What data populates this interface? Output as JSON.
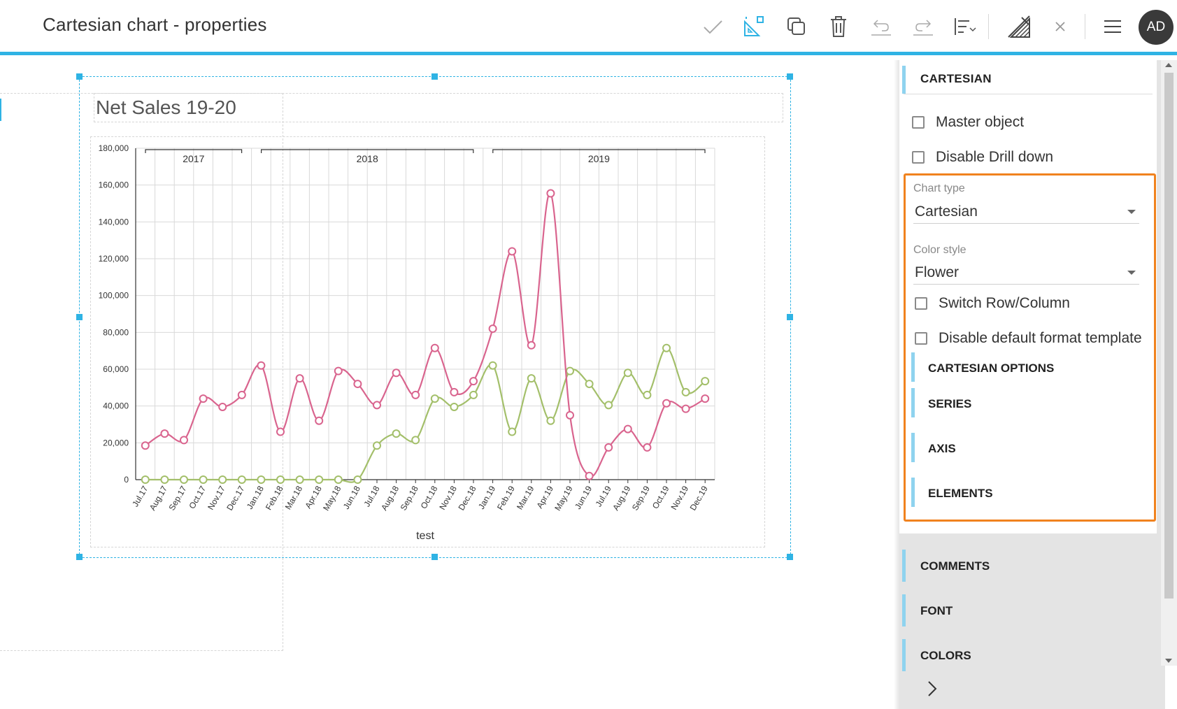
{
  "header": {
    "title": "Cartesian chart - properties",
    "avatar_initials": "AD",
    "icons": [
      "check-icon",
      "chart-edit-icon",
      "duplicate-icon",
      "trash-icon",
      "undo-icon",
      "redo-icon",
      "align-icon",
      "brush-icon",
      "close-icon",
      "menu-icon"
    ],
    "accent_color": "#2fb3e4"
  },
  "widget": {
    "title": "Net Sales 19-20"
  },
  "chart_data": {
    "type": "line",
    "xlabel": "test",
    "ylabel": "",
    "ylim": [
      0,
      180000
    ],
    "y_ticks": [
      "0",
      "20,000",
      "40,000",
      "60,000",
      "80,000",
      "100,000",
      "120,000",
      "140,000",
      "160,000",
      "180,000"
    ],
    "groups": [
      {
        "label": "2017",
        "months": 6
      },
      {
        "label": "2018",
        "months": 12
      },
      {
        "label": "2019",
        "months": 12
      }
    ],
    "categories": [
      "Jul.17",
      "Aug.17",
      "Sep.17",
      "Oct.17",
      "Nov.17",
      "Dec.17",
      "Jan.18",
      "Feb.18",
      "Mar.18",
      "Apr.18",
      "May.18",
      "Jun.18",
      "Jul.18",
      "Aug.18",
      "Sep.18",
      "Oct.18",
      "Nov.18",
      "Dec.18",
      "Jan.19",
      "Feb.19",
      "Mar.19",
      "Apr.19",
      "May.19",
      "Jun.19",
      "Jul.19",
      "Aug.19",
      "Sep.19",
      "Oct.19",
      "Nov.19",
      "Dec.19"
    ],
    "series": [
      {
        "color": "#d9648e",
        "values": [
          18500,
          25000,
          21500,
          44000,
          39500,
          46000,
          62000,
          26000,
          55000,
          32000,
          59000,
          52000,
          40500,
          58000,
          46000,
          71500,
          47500,
          53500,
          82000,
          124000,
          73000,
          155500,
          35000,
          2000,
          17500,
          27500,
          17500,
          41500,
          38500,
          44000
        ]
      },
      {
        "color": "#a3bf6a",
        "values": [
          0,
          0,
          0,
          0,
          0,
          0,
          0,
          0,
          0,
          0,
          0,
          0,
          18500,
          25000,
          21500,
          44000,
          39500,
          46000,
          62000,
          26000,
          55000,
          32000,
          59000,
          52000,
          40500,
          58000,
          46000,
          71500,
          47500,
          53500
        ]
      }
    ],
    "grid": true,
    "legend": "none"
  },
  "panel": {
    "section_title": "CARTESIAN",
    "checkbox_master": "Master object",
    "checkbox_drilldown": "Disable Drill down",
    "chart_type_label": "Chart type",
    "chart_type_value": "Cartesian",
    "color_style_label": "Color style",
    "color_style_value": "Flower",
    "checkbox_switch": "Switch Row/Column",
    "checkbox_format": "Disable default format template",
    "sub_sections": [
      "CARTESIAN OPTIONS",
      "SERIES",
      "AXIS",
      "ELEMENTS"
    ],
    "lower_sections": [
      "COMMENTS",
      "FONT",
      "COLORS"
    ],
    "highlight_color": "#f0821e"
  }
}
